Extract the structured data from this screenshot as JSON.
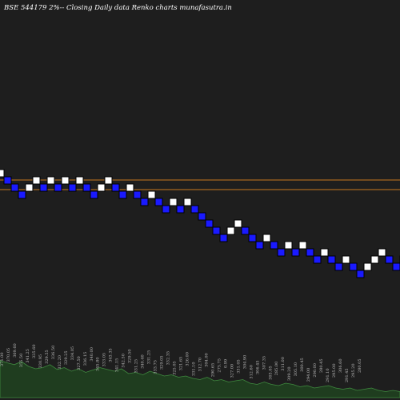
{
  "colors": {
    "background": "#000000",
    "plot_background": "#1e1e1e",
    "up_brick": "#ffffff",
    "down_brick": "#1a1aff",
    "brick_border": "#000000",
    "level_line": "#c8781e",
    "volume_fill": "#1f3d1f",
    "volume_stroke": "#3f8a3f",
    "title_text": "#ffffff",
    "label_text": "#bbbbbb"
  },
  "chart_data": {
    "type": "renko",
    "title": "BSE 544179 2%-- Closing Daily data  Renko  charts munafasutra.in",
    "y_axis": "price",
    "ylim": [
      280,
      345
    ],
    "brick_percent": 2,
    "level_lines": [
      324,
      316
    ],
    "bricks": [
      {
        "price": 330,
        "dir": "up"
      },
      {
        "price": 324,
        "dir": "down"
      },
      {
        "price": 318,
        "dir": "down"
      },
      {
        "price": 312,
        "dir": "down"
      },
      {
        "price": 318,
        "dir": "up"
      },
      {
        "price": 324,
        "dir": "up"
      },
      {
        "price": 318,
        "dir": "down"
      },
      {
        "price": 324,
        "dir": "up"
      },
      {
        "price": 318,
        "dir": "down"
      },
      {
        "price": 324,
        "dir": "up"
      },
      {
        "price": 318,
        "dir": "down"
      },
      {
        "price": 324,
        "dir": "up"
      },
      {
        "price": 318,
        "dir": "down"
      },
      {
        "price": 312,
        "dir": "down"
      },
      {
        "price": 318,
        "dir": "up"
      },
      {
        "price": 324,
        "dir": "up"
      },
      {
        "price": 318,
        "dir": "down"
      },
      {
        "price": 312,
        "dir": "down"
      },
      {
        "price": 318,
        "dir": "up"
      },
      {
        "price": 312,
        "dir": "down"
      },
      {
        "price": 306,
        "dir": "down"
      },
      {
        "price": 312,
        "dir": "up"
      },
      {
        "price": 306,
        "dir": "down"
      },
      {
        "price": 300,
        "dir": "down"
      },
      {
        "price": 306,
        "dir": "up"
      },
      {
        "price": 300,
        "dir": "down"
      },
      {
        "price": 306,
        "dir": "up"
      },
      {
        "price": 300,
        "dir": "down"
      },
      {
        "price": 294,
        "dir": "down"
      },
      {
        "price": 288,
        "dir": "down"
      },
      {
        "price": 282,
        "dir": "down"
      },
      {
        "price": 276,
        "dir": "down"
      },
      {
        "price": 282,
        "dir": "up"
      },
      {
        "price": 288,
        "dir": "up"
      },
      {
        "price": 282,
        "dir": "down"
      },
      {
        "price": 276,
        "dir": "down"
      },
      {
        "price": 270,
        "dir": "down"
      },
      {
        "price": 276,
        "dir": "up"
      },
      {
        "price": 270,
        "dir": "down"
      },
      {
        "price": 264,
        "dir": "down"
      },
      {
        "price": 270,
        "dir": "up"
      },
      {
        "price": 264,
        "dir": "down"
      },
      {
        "price": 270,
        "dir": "up"
      },
      {
        "price": 264,
        "dir": "down"
      },
      {
        "price": 258,
        "dir": "down"
      },
      {
        "price": 264,
        "dir": "up"
      },
      {
        "price": 258,
        "dir": "down"
      },
      {
        "price": 252,
        "dir": "down"
      },
      {
        "price": 258,
        "dir": "up"
      },
      {
        "price": 252,
        "dir": "down"
      },
      {
        "price": 246,
        "dir": "down"
      },
      {
        "price": 252,
        "dir": "up"
      },
      {
        "price": 258,
        "dir": "up"
      },
      {
        "price": 264,
        "dir": "up"
      },
      {
        "price": 258,
        "dir": "down"
      },
      {
        "price": 252,
        "dir": "down"
      },
      {
        "price": 258,
        "dir": "up"
      }
    ],
    "price_labels": [
      "371.00",
      "370.05",
      "369.60",
      "355.50",
      "341.25",
      "335.60",
      "330.95",
      "329.55",
      "336.50",
      "332.20",
      "329.25",
      "334.05",
      "327.50",
      "336.15",
      "340.00",
      "345.80",
      "333.05",
      "343.35",
      "341.15",
      "342.50",
      "329.50",
      "331.25",
      "340.40",
      "331.25",
      "333.75",
      "329.05",
      "332.35",
      "325.05",
      "321.65",
      "326.00",
      "331.10",
      "312.70",
      "304.00",
      "290.65",
      "275.75",
      "0.99",
      "327.00",
      "331.05",
      "304.90",
      "312.60",
      "306.45",
      "307.35",
      "303.05",
      "285.00",
      "311.00",
      "309.20",
      "305.10",
      "300.45",
      "294.00",
      "290.00",
      "280.45",
      "291.10",
      "295.00",
      "306.60",
      "291.45",
      "295.20",
      "280.05"
    ],
    "volume": [
      62,
      58,
      55,
      60,
      52,
      48,
      50,
      55,
      47,
      50,
      44,
      48,
      42,
      46,
      50,
      47,
      44,
      48,
      40,
      42,
      38,
      44,
      40,
      36,
      38,
      34,
      36,
      32,
      30,
      34,
      28,
      30,
      26,
      28,
      30,
      24,
      22,
      26,
      22,
      20,
      24,
      22,
      18,
      20,
      16,
      18,
      20,
      16,
      14,
      16,
      12,
      14,
      16,
      12,
      10,
      12,
      10
    ],
    "volume_max": 80
  }
}
